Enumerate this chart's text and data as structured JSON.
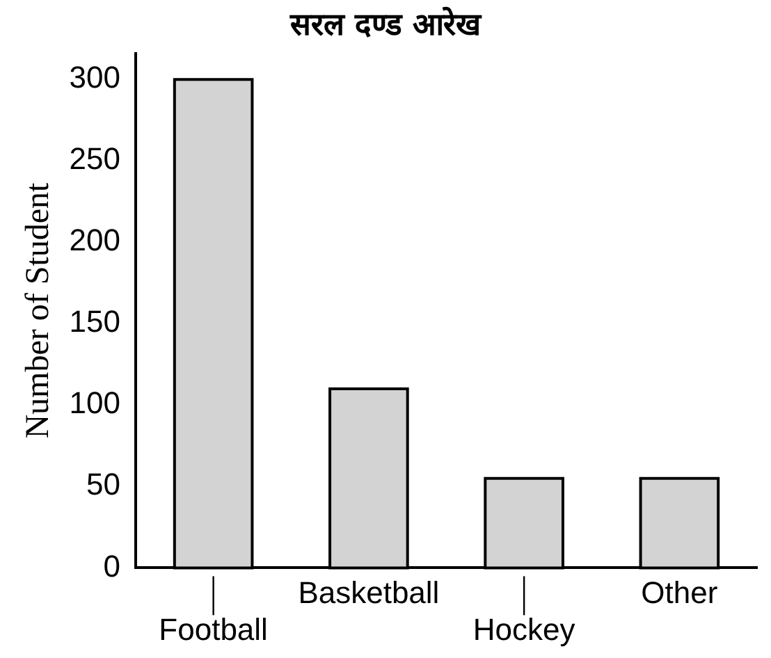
{
  "chart_data": {
    "type": "bar",
    "title": "सरल दण्ड आरेख",
    "ylabel": "Number of Student",
    "categories": [
      "Football",
      "Basketball",
      "Hockey",
      "Other"
    ],
    "values": [
      300,
      110,
      55,
      55
    ],
    "color": "#d3d3d3",
    "ylim": [
      0,
      316
    ],
    "yticks": [
      0,
      50,
      100,
      150,
      200,
      250,
      300
    ],
    "grid": false,
    "legend": false
  }
}
